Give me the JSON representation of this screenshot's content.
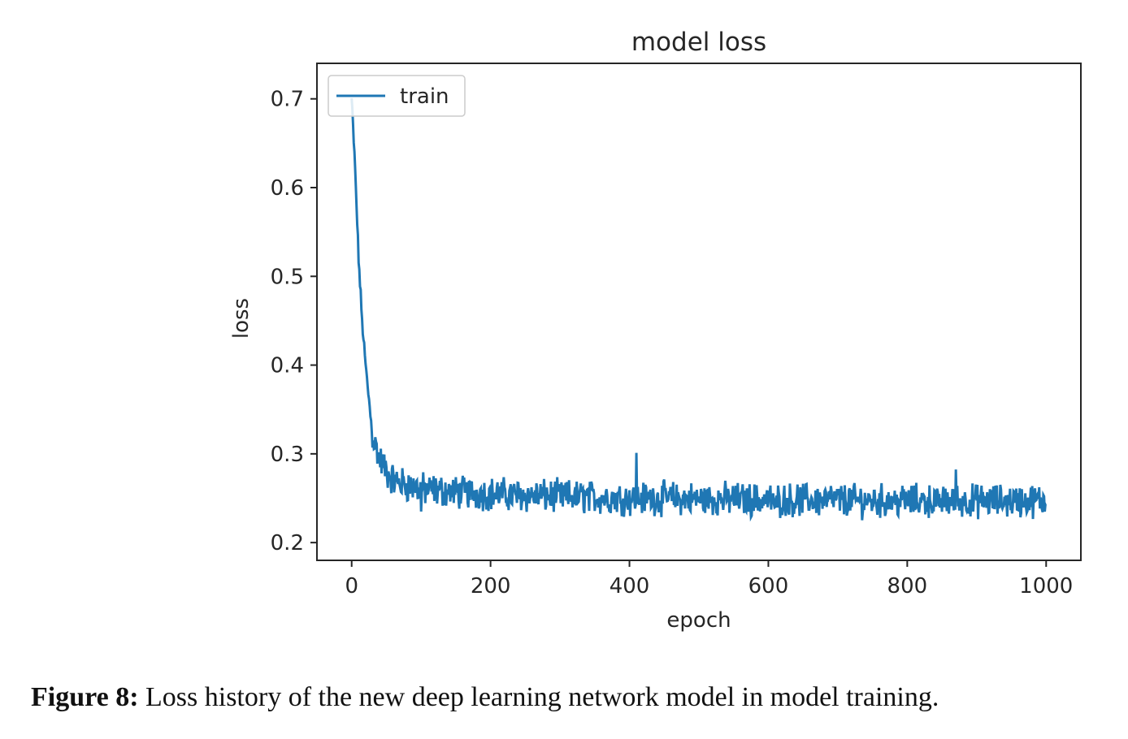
{
  "chart_data": {
    "type": "line",
    "title": "model loss",
    "xlabel": "epoch",
    "ylabel": "loss",
    "xlim": [
      -50,
      1050
    ],
    "ylim": [
      0.18,
      0.74
    ],
    "xticks": [
      0,
      200,
      400,
      600,
      800,
      1000
    ],
    "yticks": [
      0.2,
      0.3,
      0.4,
      0.5,
      0.6,
      0.7
    ],
    "grid": false,
    "legend": {
      "placement": "top-left",
      "entries": [
        "train"
      ]
    },
    "series": [
      {
        "name": "train",
        "color": "#1f77b4",
        "x": [
          0,
          5,
          10,
          15,
          20,
          25,
          30,
          40,
          50,
          60,
          80,
          100,
          150,
          200,
          250,
          300,
          350,
          400,
          450,
          500,
          550,
          600,
          650,
          700,
          750,
          800,
          850,
          900,
          950,
          1000
        ],
        "y": [
          0.7,
          0.62,
          0.52,
          0.45,
          0.4,
          0.36,
          0.32,
          0.295,
          0.28,
          0.27,
          0.265,
          0.26,
          0.257,
          0.255,
          0.253,
          0.252,
          0.251,
          0.25,
          0.25,
          0.249,
          0.249,
          0.248,
          0.248,
          0.248,
          0.247,
          0.247,
          0.247,
          0.247,
          0.247,
          0.247
        ],
        "noise_amplitude": 0.015
      }
    ]
  },
  "caption": {
    "label": "Figure 8:",
    "text": " Loss history of the new deep learning network model in model training."
  }
}
